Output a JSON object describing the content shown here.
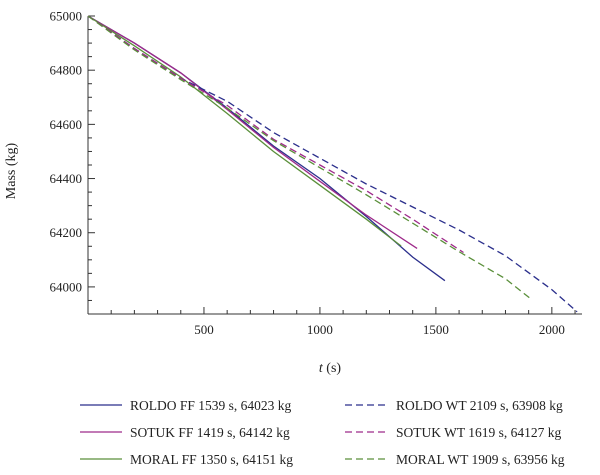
{
  "chart_data": {
    "type": "line",
    "xlabel_italic": "t",
    "xlabel_unit": " (s)",
    "ylabel": "Mass (kg)",
    "xlim": [
      0,
      2130
    ],
    "ylim": [
      63900,
      65000
    ],
    "x_ticks": [
      500,
      1000,
      1500,
      2000
    ],
    "y_ticks": [
      64000,
      64200,
      64400,
      64600,
      64800,
      65000
    ],
    "grid": false,
    "legend_position": "bottom",
    "series": [
      {
        "name": "ROLDO FF 1539 s, 64023 kg",
        "color": "#2b2f8c",
        "dash": "solid",
        "points": [
          [
            0,
            65000
          ],
          [
            200,
            64900
          ],
          [
            400,
            64790
          ],
          [
            600,
            64660
          ],
          [
            800,
            64520
          ],
          [
            1000,
            64400
          ],
          [
            1200,
            64260
          ],
          [
            1400,
            64110
          ],
          [
            1539,
            64023
          ]
        ]
      },
      {
        "name": "SOTUK FF 1419 s, 64142 kg",
        "color": "#9e2a8a",
        "dash": "solid",
        "points": [
          [
            0,
            65000
          ],
          [
            200,
            64900
          ],
          [
            400,
            64790
          ],
          [
            600,
            64655
          ],
          [
            800,
            64515
          ],
          [
            1000,
            64390
          ],
          [
            1200,
            64265
          ],
          [
            1419,
            64142
          ]
        ]
      },
      {
        "name": "MORAL FF 1350 s, 64151 kg",
        "color": "#5a8f3a",
        "dash": "solid",
        "points": [
          [
            0,
            65000
          ],
          [
            200,
            64890
          ],
          [
            400,
            64775
          ],
          [
            600,
            64640
          ],
          [
            800,
            64500
          ],
          [
            1000,
            64375
          ],
          [
            1200,
            64250
          ],
          [
            1350,
            64151
          ]
        ]
      },
      {
        "name": "ROLDO WT 2109 s, 63908 kg",
        "color": "#2b2f8c",
        "dash": "dashed",
        "points": [
          [
            0,
            65000
          ],
          [
            200,
            64880
          ],
          [
            400,
            64770
          ],
          [
            600,
            64685
          ],
          [
            800,
            64570
          ],
          [
            1000,
            64475
          ],
          [
            1200,
            64380
          ],
          [
            1400,
            64295
          ],
          [
            1600,
            64210
          ],
          [
            1800,
            64115
          ],
          [
            2000,
            63990
          ],
          [
            2109,
            63908
          ]
        ]
      },
      {
        "name": "SOTUK WT 1619 s, 64127 kg",
        "color": "#9e2a8a",
        "dash": "dashed",
        "points": [
          [
            0,
            65000
          ],
          [
            200,
            64880
          ],
          [
            400,
            64770
          ],
          [
            600,
            64670
          ],
          [
            800,
            64545
          ],
          [
            1000,
            64450
          ],
          [
            1200,
            64355
          ],
          [
            1400,
            64250
          ],
          [
            1619,
            64127
          ]
        ]
      },
      {
        "name": "MORAL WT 1909 s, 63956 kg",
        "color": "#5a8f3a",
        "dash": "dashed",
        "points": [
          [
            0,
            65000
          ],
          [
            200,
            64875
          ],
          [
            400,
            64765
          ],
          [
            600,
            64660
          ],
          [
            800,
            64540
          ],
          [
            1000,
            64440
          ],
          [
            1200,
            64340
          ],
          [
            1400,
            64235
          ],
          [
            1600,
            64130
          ],
          [
            1800,
            64030
          ],
          [
            1909,
            63956
          ]
        ]
      }
    ]
  }
}
